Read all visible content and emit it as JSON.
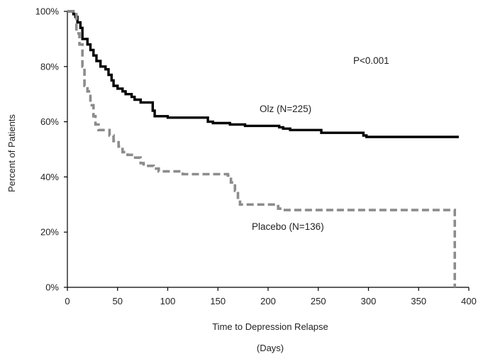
{
  "chart_data": {
    "type": "line",
    "title": "",
    "xlabel": "Time to Depression Relapse",
    "xlabel_units": "(Days)",
    "ylabel": "Percent of Patients",
    "xlim": [
      0,
      400
    ],
    "ylim": [
      0,
      100
    ],
    "x_ticks": [
      0,
      50,
      100,
      150,
      200,
      250,
      300,
      350,
      400
    ],
    "y_ticks": [
      0,
      20,
      40,
      60,
      80,
      100
    ],
    "y_tick_labels": [
      "0%",
      "20%",
      "40%",
      "60%",
      "80%",
      "100%"
    ],
    "grid": false,
    "annotation": "P<0.001",
    "series": [
      {
        "name": "Olz (N=225)",
        "color": "#000000",
        "style": "solid-step",
        "points": [
          [
            0,
            100
          ],
          [
            5,
            100
          ],
          [
            6,
            99
          ],
          [
            8,
            98
          ],
          [
            10,
            96
          ],
          [
            13,
            94
          ],
          [
            15,
            90
          ],
          [
            20,
            88
          ],
          [
            23,
            86
          ],
          [
            26,
            84
          ],
          [
            29,
            82
          ],
          [
            33,
            80
          ],
          [
            38,
            79
          ],
          [
            41,
            77
          ],
          [
            44,
            75
          ],
          [
            46,
            73
          ],
          [
            50,
            72
          ],
          [
            55,
            71
          ],
          [
            58,
            70
          ],
          [
            64,
            69
          ],
          [
            67,
            68
          ],
          [
            73,
            67
          ],
          [
            85,
            64
          ],
          [
            87,
            62
          ],
          [
            98,
            62
          ],
          [
            100,
            61.5
          ],
          [
            140,
            60
          ],
          [
            145,
            59.5
          ],
          [
            162,
            59
          ],
          [
            177,
            58.5
          ],
          [
            211,
            58
          ],
          [
            215,
            57.5
          ],
          [
            222,
            57
          ],
          [
            253,
            56
          ],
          [
            295,
            55
          ],
          [
            298,
            54.5
          ],
          [
            390,
            54.5
          ]
        ]
      },
      {
        "name": "Placebo (N=136)",
        "color": "#8c8c8c",
        "style": "dashed-step",
        "points": [
          [
            0,
            100
          ],
          [
            8,
            100
          ],
          [
            9,
            92
          ],
          [
            12,
            88
          ],
          [
            15,
            80
          ],
          [
            17,
            73
          ],
          [
            20,
            71
          ],
          [
            23,
            66
          ],
          [
            26,
            62
          ],
          [
            28,
            59
          ],
          [
            31,
            57
          ],
          [
            42,
            55
          ],
          [
            46,
            53
          ],
          [
            51,
            51
          ],
          [
            55,
            49
          ],
          [
            60,
            48
          ],
          [
            66,
            47
          ],
          [
            73,
            45
          ],
          [
            76,
            44
          ],
          [
            86,
            43
          ],
          [
            91,
            42
          ],
          [
            115,
            41
          ],
          [
            142,
            41
          ],
          [
            160,
            40.5
          ],
          [
            163,
            38
          ],
          [
            167,
            35
          ],
          [
            170,
            32
          ],
          [
            172,
            30
          ],
          [
            210,
            28.5
          ],
          [
            212,
            28
          ],
          [
            385,
            28
          ],
          [
            386,
            0
          ]
        ]
      }
    ]
  }
}
